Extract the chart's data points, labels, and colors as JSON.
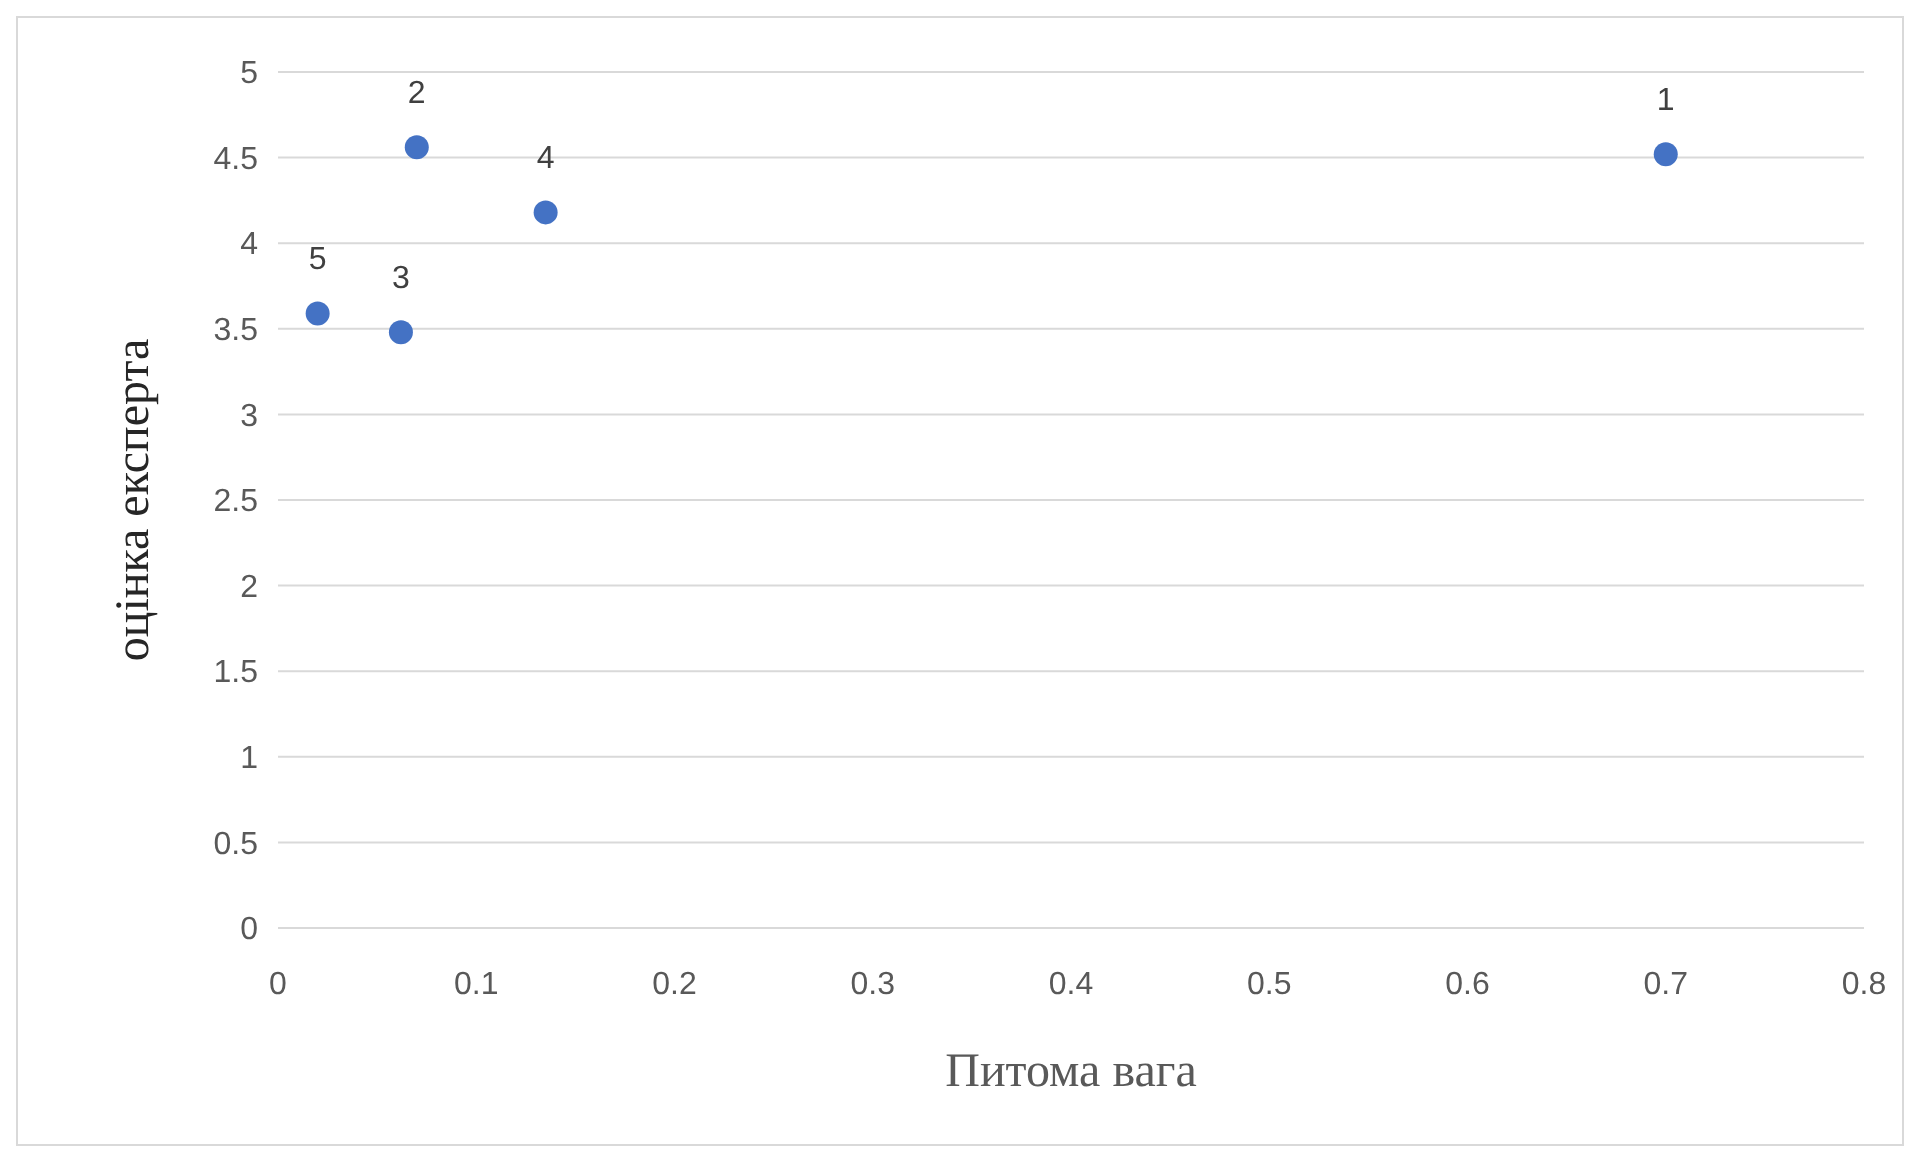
{
  "chart_data": {
    "type": "scatter",
    "xlabel": "Питома вага",
    "ylabel": "оцінка експерта",
    "x": [
      0.7,
      0.07,
      0.062,
      0.135,
      0.02
    ],
    "values": [
      4.52,
      4.56,
      3.48,
      4.18,
      3.59
    ],
    "color": "#4472c4",
    "marker": "circle",
    "grid": "y",
    "xlim": [
      0,
      0.8
    ],
    "xticks": [
      0,
      0.1,
      0.2,
      0.3,
      0.4,
      0.5,
      0.6,
      0.7,
      0.8
    ],
    "ylim": [
      0,
      5
    ],
    "yticks": [
      0,
      0.5,
      1,
      1.5,
      2,
      2.5,
      3,
      3.5,
      4,
      4.5,
      5
    ],
    "annotations": [
      {
        "text": "1",
        "x": 0.7,
        "y": 4.52
      },
      {
        "text": "2",
        "x": 0.07,
        "y": 4.56
      },
      {
        "text": "3",
        "x": 0.062,
        "y": 3.48
      },
      {
        "text": "4",
        "x": 0.135,
        "y": 4.18
      },
      {
        "text": "5",
        "x": 0.02,
        "y": 3.59
      }
    ]
  }
}
